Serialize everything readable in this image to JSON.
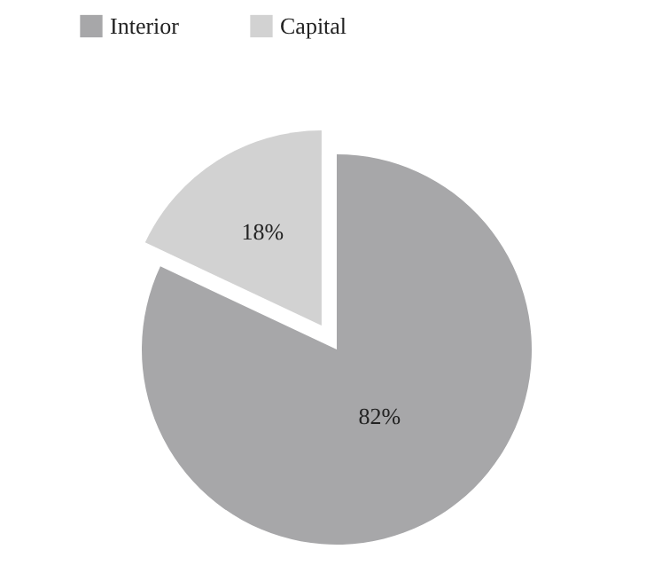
{
  "chart_data": {
    "type": "pie",
    "categories": [
      "Interior",
      "Capital"
    ],
    "values": [
      82,
      18
    ],
    "colors": [
      "#a7a7a9",
      "#d2d2d2"
    ],
    "value_labels": [
      "82%",
      "18%"
    ],
    "legend": "top left"
  }
}
